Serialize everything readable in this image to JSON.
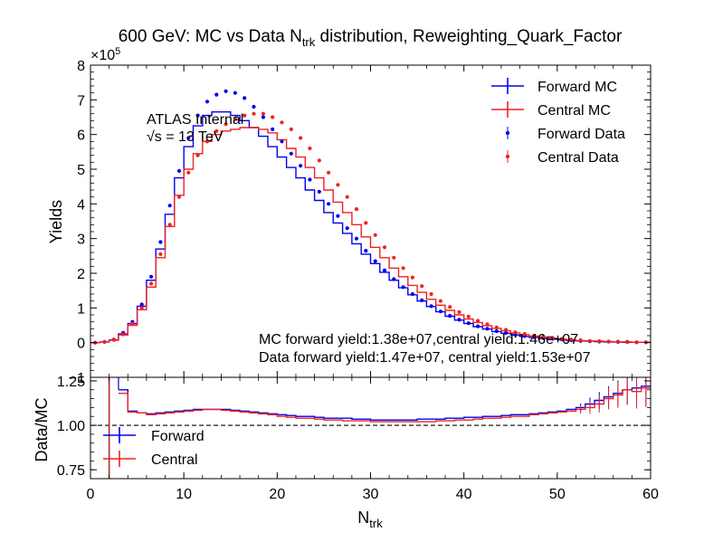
{
  "chart_data": [
    {
      "panel": "main",
      "type": "step",
      "title_main": "600 GeV: MC vs Data N",
      "title_sub": "trk",
      "title_tail": " distribution, Reweighting_Quark_Factor",
      "ylabel": "Yields",
      "exponent_base": "×10",
      "exponent_power": "5",
      "xlim": [
        0,
        60
      ],
      "ylim": [
        -1,
        8
      ],
      "yticks": [
        "−1",
        "0",
        "1",
        "2",
        "3",
        "4",
        "5",
        "6",
        "7",
        "8"
      ],
      "ytick_values": [
        -1,
        0,
        1,
        2,
        3,
        4,
        5,
        6,
        7,
        8
      ],
      "annotation_atlas": "ATLAS Internal",
      "annotation_sqrt": "√s",
      "annotation_energy": " = 13 TeV",
      "yield_text_mc": "MC forward yield:1.38e+07,central yield:1.46e+07",
      "yield_text_data": "Data forward yield:1.47e+07, central yield:1.53e+07",
      "legend": [
        "Forward MC",
        "Central MC",
        "Forward Data",
        "Central Data"
      ],
      "legend_position": "top-right",
      "series": [
        {
          "name": "Forward MC",
          "style": "step",
          "color": "#0000ee",
          "x": [
            0,
            1,
            2,
            3,
            4,
            5,
            6,
            7,
            8,
            9,
            10,
            11,
            12,
            13,
            14,
            15,
            16,
            17,
            18,
            19,
            20,
            21,
            22,
            23,
            24,
            25,
            26,
            27,
            28,
            29,
            30,
            31,
            32,
            33,
            34,
            35,
            36,
            37,
            38,
            39,
            40,
            41,
            42,
            43,
            44,
            45,
            46,
            47,
            48,
            49,
            50,
            51,
            52,
            53,
            54,
            55,
            56,
            57,
            58,
            59
          ],
          "values": [
            0.0,
            0.02,
            0.08,
            0.25,
            0.55,
            1.05,
            1.8,
            2.7,
            3.7,
            4.75,
            5.65,
            6.25,
            6.55,
            6.65,
            6.65,
            6.55,
            6.4,
            6.2,
            5.95,
            5.65,
            5.35,
            5.05,
            4.75,
            4.4,
            4.1,
            3.75,
            3.45,
            3.15,
            2.85,
            2.55,
            2.28,
            2.03,
            1.8,
            1.58,
            1.38,
            1.2,
            1.04,
            0.89,
            0.76,
            0.65,
            0.55,
            0.46,
            0.39,
            0.32,
            0.27,
            0.22,
            0.18,
            0.15,
            0.12,
            0.1,
            0.08,
            0.06,
            0.05,
            0.04,
            0.03,
            0.02,
            0.02,
            0.01,
            0.01,
            0.01
          ]
        },
        {
          "name": "Central MC",
          "style": "step",
          "color": "#ee2222",
          "x": [
            0,
            1,
            2,
            3,
            4,
            5,
            6,
            7,
            8,
            9,
            10,
            11,
            12,
            13,
            14,
            15,
            16,
            17,
            18,
            19,
            20,
            21,
            22,
            23,
            24,
            25,
            26,
            27,
            28,
            29,
            30,
            31,
            32,
            33,
            34,
            35,
            36,
            37,
            38,
            39,
            40,
            41,
            42,
            43,
            44,
            45,
            46,
            47,
            48,
            49,
            50,
            51,
            52,
            53,
            54,
            55,
            56,
            57,
            58,
            59
          ],
          "values": [
            0.0,
            0.02,
            0.07,
            0.22,
            0.5,
            0.95,
            1.6,
            2.45,
            3.35,
            4.25,
            5.0,
            5.45,
            5.8,
            6.0,
            6.1,
            6.15,
            6.2,
            6.2,
            6.15,
            6.05,
            5.85,
            5.6,
            5.35,
            5.05,
            4.75,
            4.4,
            4.05,
            3.75,
            3.4,
            3.05,
            2.75,
            2.45,
            2.15,
            1.9,
            1.65,
            1.45,
            1.25,
            1.08,
            0.93,
            0.8,
            0.68,
            0.58,
            0.49,
            0.41,
            0.34,
            0.28,
            0.23,
            0.19,
            0.16,
            0.13,
            0.1,
            0.08,
            0.06,
            0.05,
            0.04,
            0.03,
            0.02,
            0.02,
            0.01,
            0.01
          ]
        },
        {
          "name": "Forward Data",
          "style": "markers",
          "color": "#0000ee",
          "x": [
            0.5,
            1.5,
            2.5,
            3.5,
            4.5,
            5.5,
            6.5,
            7.5,
            8.5,
            9.5,
            10.5,
            11.5,
            12.5,
            13.5,
            14.5,
            15.5,
            16.5,
            17.5,
            18.5,
            19.5,
            20.5,
            21.5,
            22.5,
            23.5,
            24.5,
            25.5,
            26.5,
            27.5,
            28.5,
            29.5,
            30.5,
            31.5,
            32.5,
            33.5,
            34.5,
            35.5,
            36.5,
            37.5,
            38.5,
            39.5,
            40.5,
            41.5,
            42.5,
            43.5,
            44.5,
            45.5,
            46.5,
            47.5,
            48.5,
            49.5,
            50.5,
            51.5,
            52.5,
            53.5,
            54.5,
            55.5,
            56.5,
            57.5,
            58.5,
            59.5
          ],
          "values": [
            0.0,
            0.02,
            0.09,
            0.28,
            0.6,
            1.1,
            1.9,
            2.9,
            3.95,
            4.95,
            5.9,
            6.55,
            6.95,
            7.15,
            7.25,
            7.2,
            7.05,
            6.8,
            6.5,
            6.15,
            5.8,
            5.45,
            5.1,
            4.7,
            4.35,
            4.0,
            3.65,
            3.3,
            3.0,
            2.65,
            2.35,
            2.08,
            1.83,
            1.6,
            1.4,
            1.22,
            1.05,
            0.9,
            0.77,
            0.66,
            0.56,
            0.47,
            0.4,
            0.33,
            0.28,
            0.23,
            0.19,
            0.16,
            0.13,
            0.11,
            0.09,
            0.07,
            0.05,
            0.04,
            0.03,
            0.03,
            0.02,
            0.02,
            0.01,
            0.01
          ]
        },
        {
          "name": "Central Data",
          "style": "markers",
          "color": "#ee2222",
          "x": [
            0.5,
            1.5,
            2.5,
            3.5,
            4.5,
            5.5,
            6.5,
            7.5,
            8.5,
            9.5,
            10.5,
            11.5,
            12.5,
            13.5,
            14.5,
            15.5,
            16.5,
            17.5,
            18.5,
            19.5,
            20.5,
            21.5,
            22.5,
            23.5,
            24.5,
            25.5,
            26.5,
            27.5,
            28.5,
            29.5,
            30.5,
            31.5,
            32.5,
            33.5,
            34.5,
            35.5,
            36.5,
            37.5,
            38.5,
            39.5,
            40.5,
            41.5,
            42.5,
            43.5,
            44.5,
            45.5,
            46.5,
            47.5,
            48.5,
            49.5,
            50.5,
            51.5,
            52.5,
            53.5,
            54.5,
            55.5,
            56.5,
            57.5,
            58.5,
            59.5
          ],
          "values": [
            0.0,
            0.02,
            0.08,
            0.24,
            0.55,
            1.0,
            1.7,
            2.55,
            3.4,
            4.2,
            4.9,
            5.4,
            5.8,
            6.1,
            6.3,
            6.45,
            6.55,
            6.6,
            6.6,
            6.5,
            6.35,
            6.15,
            5.9,
            5.6,
            5.25,
            4.9,
            4.55,
            4.2,
            3.85,
            3.45,
            3.1,
            2.75,
            2.45,
            2.15,
            1.88,
            1.63,
            1.4,
            1.2,
            1.03,
            0.88,
            0.75,
            0.63,
            0.53,
            0.44,
            0.37,
            0.3,
            0.25,
            0.2,
            0.17,
            0.14,
            0.11,
            0.09,
            0.07,
            0.05,
            0.04,
            0.03,
            0.03,
            0.02,
            0.01,
            0.01
          ]
        }
      ]
    },
    {
      "panel": "ratio",
      "type": "step",
      "xlabel_main": "N",
      "xlabel_sub": "trk",
      "ylabel": "Data/MC",
      "xlim": [
        0,
        60
      ],
      "ylim": [
        0.7,
        1.27
      ],
      "xticks": [
        "0",
        "10",
        "20",
        "30",
        "40",
        "50",
        "60"
      ],
      "xtick_values": [
        0,
        10,
        20,
        30,
        40,
        50,
        60
      ],
      "yticks": [
        "0.75",
        "1.00",
        "1.25"
      ],
      "ytick_values": [
        0.75,
        1.0,
        1.25
      ],
      "reference_line": 1.0,
      "legend": [
        "Forward",
        "Central"
      ],
      "legend_position": "lower-left",
      "series": [
        {
          "name": "Forward",
          "color": "#0000ee",
          "x": [
            3,
            4,
            5,
            6,
            7,
            8,
            9,
            10,
            11,
            12,
            13,
            14,
            15,
            16,
            17,
            18,
            19,
            20,
            21,
            22,
            23,
            24,
            25,
            26,
            27,
            28,
            29,
            30,
            31,
            32,
            33,
            34,
            35,
            36,
            37,
            38,
            39,
            40,
            41,
            42,
            43,
            44,
            45,
            46,
            47,
            48,
            49,
            50,
            51,
            52,
            53,
            54,
            55,
            56,
            57,
            58,
            59
          ],
          "values": [
            1.2,
            1.08,
            1.07,
            1.065,
            1.07,
            1.075,
            1.08,
            1.085,
            1.09,
            1.09,
            1.09,
            1.09,
            1.085,
            1.08,
            1.075,
            1.07,
            1.065,
            1.06,
            1.055,
            1.05,
            1.05,
            1.045,
            1.04,
            1.04,
            1.04,
            1.035,
            1.035,
            1.03,
            1.03,
            1.03,
            1.03,
            1.03,
            1.035,
            1.035,
            1.035,
            1.04,
            1.04,
            1.045,
            1.045,
            1.05,
            1.05,
            1.055,
            1.06,
            1.06,
            1.065,
            1.07,
            1.075,
            1.08,
            1.09,
            1.1,
            1.12,
            1.14,
            1.16,
            1.18,
            1.2,
            1.21,
            1.22
          ]
        },
        {
          "name": "Central",
          "color": "#ee2222",
          "x": [
            3,
            4,
            5,
            6,
            7,
            8,
            9,
            10,
            11,
            12,
            13,
            14,
            15,
            16,
            17,
            18,
            19,
            20,
            21,
            22,
            23,
            24,
            25,
            26,
            27,
            28,
            29,
            30,
            31,
            32,
            33,
            34,
            35,
            36,
            37,
            38,
            39,
            40,
            41,
            42,
            43,
            44,
            45,
            46,
            47,
            48,
            49,
            50,
            51,
            52,
            53,
            54,
            55,
            56,
            57,
            58,
            59
          ],
          "values": [
            1.18,
            1.075,
            1.07,
            1.06,
            1.065,
            1.07,
            1.075,
            1.08,
            1.085,
            1.09,
            1.09,
            1.085,
            1.08,
            1.075,
            1.07,
            1.065,
            1.06,
            1.05,
            1.045,
            1.04,
            1.04,
            1.035,
            1.03,
            1.03,
            1.025,
            1.025,
            1.025,
            1.02,
            1.02,
            1.02,
            1.02,
            1.02,
            1.02,
            1.02,
            1.025,
            1.025,
            1.03,
            1.03,
            1.035,
            1.04,
            1.04,
            1.045,
            1.05,
            1.05,
            1.06,
            1.065,
            1.07,
            1.075,
            1.08,
            1.09,
            1.1,
            1.12,
            1.15,
            1.17,
            1.2,
            1.19,
            1.21
          ]
        }
      ]
    }
  ]
}
